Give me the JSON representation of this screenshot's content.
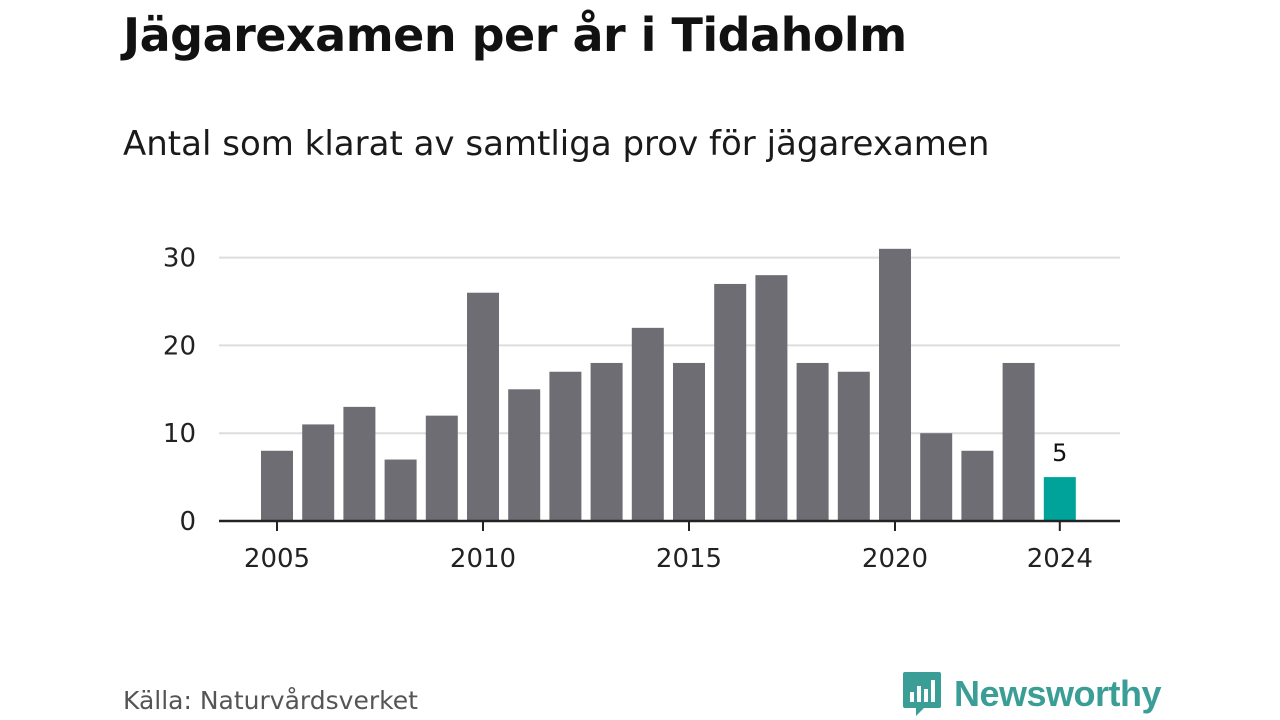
{
  "header": {
    "title": "Jägarexamen per år i Tidaholm",
    "subtitle": "Antal som klarat av samtliga prov för jägarexamen"
  },
  "footer": {
    "source": "Källa: Naturvårdsverket",
    "brand": "Newsworthy",
    "brand_icon": "chart-bubble-icon"
  },
  "colors": {
    "bar": "#6e6d73",
    "highlight": "#00a39a",
    "grid": "#dddddd",
    "axis": "#222222",
    "brand": "#3a9e96"
  },
  "chart_data": {
    "type": "bar",
    "x": [
      2005,
      2006,
      2007,
      2008,
      2009,
      2010,
      2011,
      2012,
      2013,
      2014,
      2015,
      2016,
      2017,
      2018,
      2019,
      2020,
      2021,
      2022,
      2023,
      2024
    ],
    "values": [
      8,
      11,
      13,
      7,
      12,
      26,
      15,
      17,
      18,
      22,
      18,
      27,
      28,
      18,
      17,
      31,
      10,
      8,
      18,
      5
    ],
    "x_ticks": [
      "2005",
      "2010",
      "2015",
      "2020",
      "2024"
    ],
    "y_ticks": [
      0,
      10,
      20,
      30
    ],
    "ylim": [
      0,
      31
    ],
    "grid": true,
    "highlight_index": 19,
    "data_labels": [
      {
        "index": 19,
        "text": "5"
      }
    ]
  }
}
